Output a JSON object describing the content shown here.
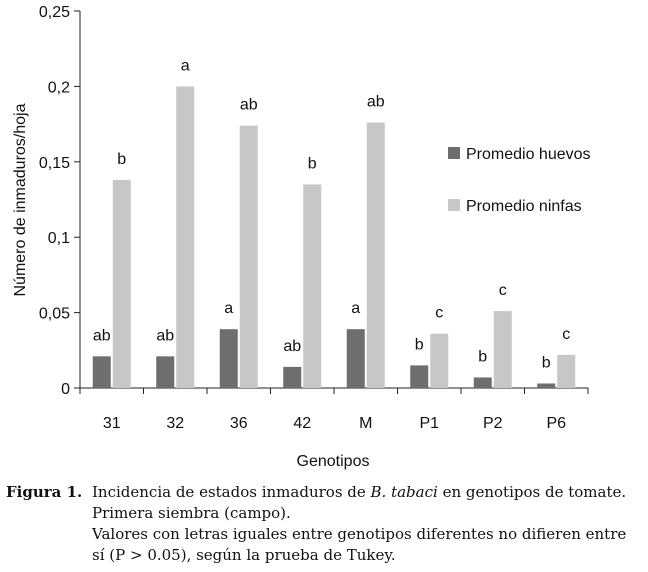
{
  "chart_data": {
    "type": "bar",
    "title": "",
    "xlabel": "Genotipos",
    "ylabel": "Número de inmaduros/hoja",
    "ylim": [
      0,
      0.25
    ],
    "yticks": [
      "0",
      "0,05",
      "0,1",
      "0,15",
      "0,2",
      "0,25"
    ],
    "categories": [
      "31",
      "32",
      "36",
      "42",
      "M",
      "P1",
      "P2",
      "P6"
    ],
    "series": [
      {
        "name": "Promedio huevos",
        "color": "#6d6e70",
        "values": [
          0.021,
          0.021,
          0.039,
          0.014,
          0.039,
          0.015,
          0.007,
          0.003
        ],
        "labels": [
          "ab",
          "ab",
          "a",
          "ab",
          "a",
          "b",
          "b",
          "b"
        ]
      },
      {
        "name": "Promedio ninfas",
        "color": "#c6c7c8",
        "values": [
          0.138,
          0.2,
          0.174,
          0.135,
          0.176,
          0.036,
          0.051,
          0.022
        ],
        "labels": [
          "b",
          "a",
          "ab",
          "b",
          "ab",
          "c",
          "c",
          "c"
        ]
      }
    ],
    "legend_position": "right",
    "grid": false
  },
  "caption": {
    "label": "Figura 1.",
    "line1_pre": "Incidencia de estados inmaduros de ",
    "line1_species": "B. tabaci",
    "line1_post": " en genotipos de tomate.",
    "line2": "Primera siembra (campo).",
    "line3": "Valores con letras iguales entre genotipos diferentes no difieren entre",
    "line4": "sí (P > 0.05), según la prueba de Tukey."
  }
}
